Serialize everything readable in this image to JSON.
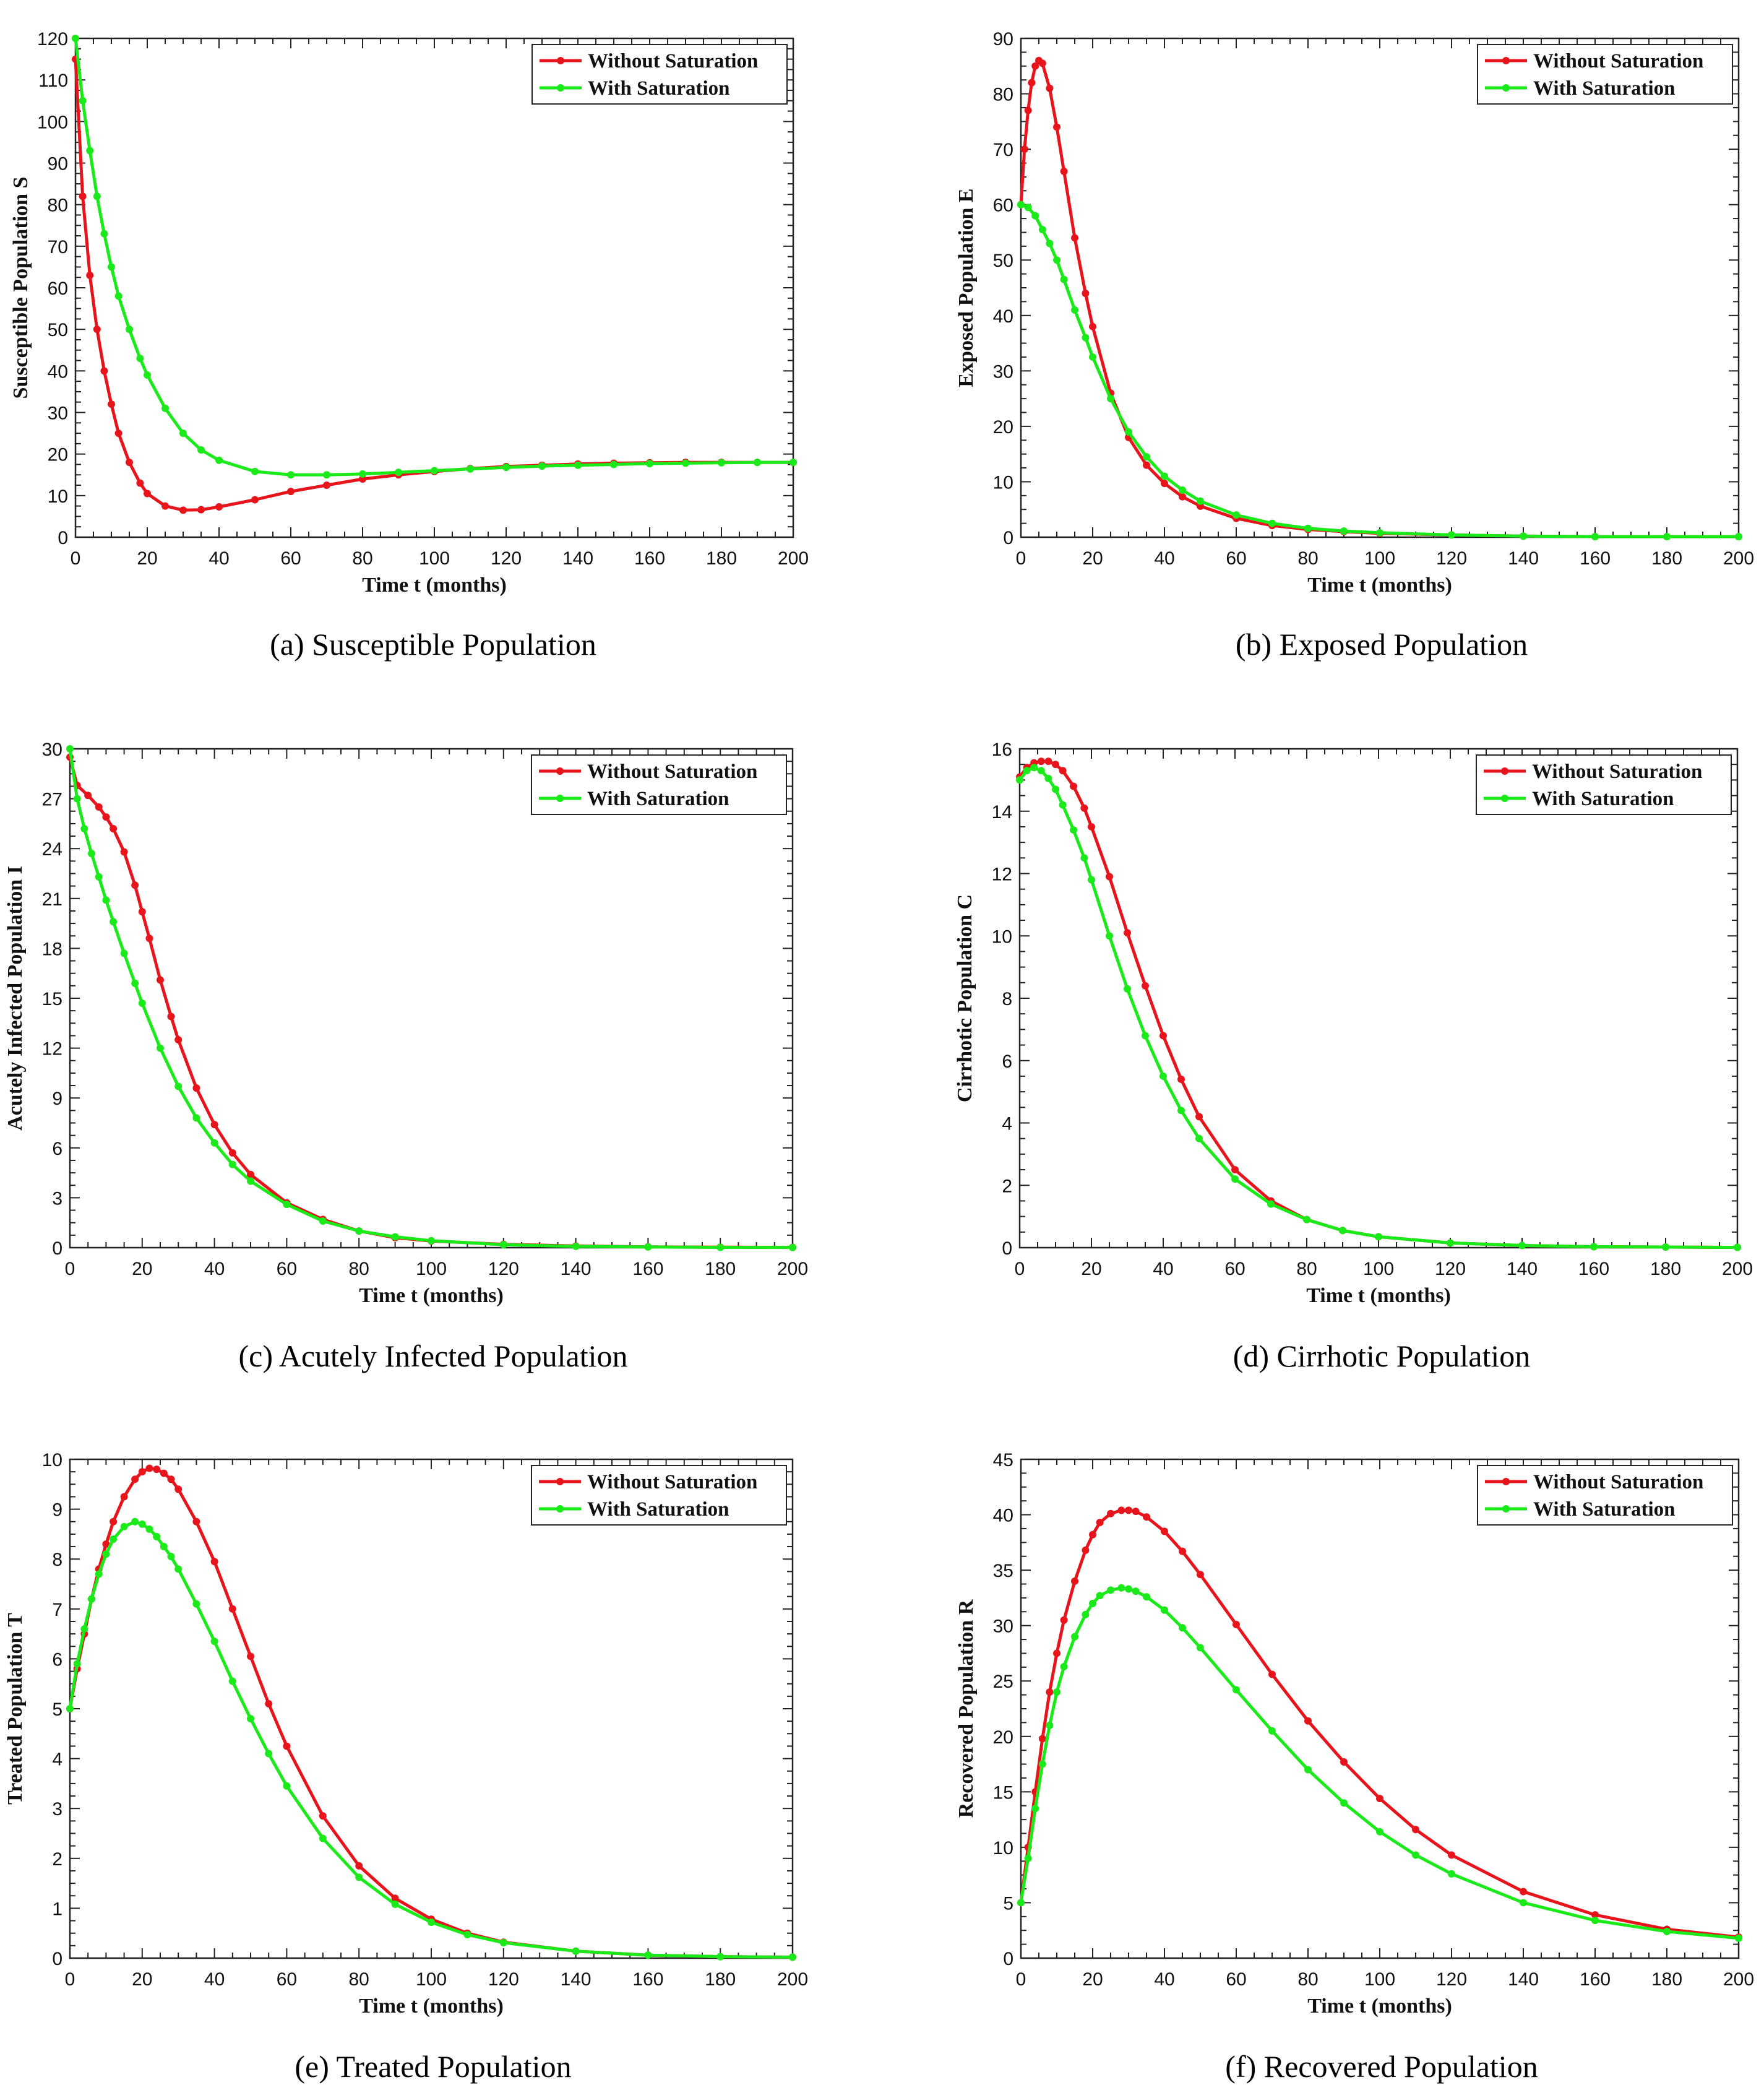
{
  "colors": {
    "without": "#e8141c",
    "with": "#1aea1a",
    "axis": "#222222"
  },
  "chart_data": [
    {
      "type": "line",
      "title": "",
      "caption": "(a) Susceptible Population",
      "xlabel": "Time t (months)",
      "ylabel": "Susceptible Population S",
      "xlim": [
        0,
        200
      ],
      "ylim": [
        0,
        120
      ],
      "xticks": [
        "0",
        "20",
        "40",
        "60",
        "80",
        "100",
        "120",
        "140",
        "160",
        "180",
        "200"
      ],
      "yticks": [
        "0",
        "10",
        "20",
        "30",
        "40",
        "50",
        "60",
        "70",
        "80",
        "90",
        "100",
        "110",
        "120"
      ],
      "legend": "top-right",
      "series": [
        {
          "name": "Without Saturation",
          "x": [
            0,
            2,
            4,
            6,
            8,
            10,
            12,
            15,
            18,
            20,
            25,
            30,
            35,
            40,
            50,
            60,
            70,
            80,
            90,
            100,
            110,
            120,
            130,
            140,
            150,
            160,
            170,
            180,
            190,
            200
          ],
          "y": [
            115,
            82,
            63,
            50,
            40,
            32,
            25,
            18,
            13,
            10.5,
            7.5,
            6.5,
            6.6,
            7.3,
            9,
            11,
            12.5,
            14,
            15,
            15.8,
            16.5,
            17,
            17.3,
            17.6,
            17.8,
            17.9,
            18,
            18,
            18,
            18
          ]
        },
        {
          "name": "With Saturation",
          "x": [
            0,
            2,
            4,
            6,
            8,
            10,
            12,
            15,
            18,
            20,
            25,
            30,
            35,
            40,
            50,
            60,
            70,
            80,
            90,
            100,
            110,
            120,
            130,
            140,
            150,
            160,
            170,
            180,
            190,
            200
          ],
          "y": [
            120,
            105,
            93,
            82,
            73,
            65,
            58,
            50,
            43,
            39,
            31,
            25,
            21,
            18.5,
            15.8,
            15,
            15,
            15.2,
            15.6,
            16,
            16.4,
            16.8,
            17.1,
            17.3,
            17.5,
            17.7,
            17.8,
            17.9,
            18,
            18
          ]
        }
      ]
    },
    {
      "type": "line",
      "title": "",
      "caption": "(b) Exposed Population",
      "xlabel": "Time t (months)",
      "ylabel": "Exposed Population E",
      "xlim": [
        0,
        200
      ],
      "ylim": [
        0,
        90
      ],
      "xticks": [
        "0",
        "20",
        "40",
        "60",
        "80",
        "100",
        "120",
        "140",
        "160",
        "180",
        "200"
      ],
      "yticks": [
        "0",
        "10",
        "20",
        "30",
        "40",
        "50",
        "60",
        "70",
        "80",
        "90"
      ],
      "legend": "top-right",
      "series": [
        {
          "name": "Without Saturation",
          "x": [
            0,
            1,
            2,
            3,
            4,
            5,
            6,
            8,
            10,
            12,
            15,
            18,
            20,
            25,
            30,
            35,
            40,
            45,
            50,
            60,
            70,
            80,
            90,
            100,
            120,
            140,
            160,
            180,
            200
          ],
          "y": [
            60,
            70,
            77,
            82,
            85,
            86,
            85.5,
            81,
            74,
            66,
            54,
            44,
            38,
            26,
            18,
            13,
            9.7,
            7.3,
            5.6,
            3.4,
            2.1,
            1.4,
            1,
            0.7,
            0.4,
            0.2,
            0.1,
            0.1,
            0.1
          ]
        },
        {
          "name": "With Saturation",
          "x": [
            0,
            2,
            4,
            6,
            8,
            10,
            12,
            15,
            18,
            20,
            25,
            30,
            35,
            40,
            45,
            50,
            60,
            70,
            80,
            90,
            100,
            120,
            140,
            160,
            180,
            200
          ],
          "y": [
            60,
            59.5,
            58,
            55.5,
            53,
            50,
            46.5,
            41,
            36,
            32.5,
            25,
            19,
            14.5,
            11,
            8.5,
            6.5,
            4,
            2.5,
            1.6,
            1.1,
            0.8,
            0.4,
            0.2,
            0.1,
            0.1,
            0.1
          ]
        }
      ]
    },
    {
      "type": "line",
      "title": "",
      "caption": "(c) Acutely Infected Population",
      "xlabel": "Time t (months)",
      "ylabel": "Acutely Infected Population I",
      "xlim": [
        0,
        200
      ],
      "ylim": [
        0,
        30
      ],
      "xticks": [
        "0",
        "20",
        "40",
        "60",
        "80",
        "100",
        "120",
        "140",
        "160",
        "180",
        "200"
      ],
      "yticks": [
        "0",
        "3",
        "6",
        "9",
        "12",
        "15",
        "18",
        "21",
        "24",
        "27",
        "30"
      ],
      "legend": "top-right",
      "series": [
        {
          "name": "Without Saturation",
          "x": [
            0,
            2,
            5,
            8,
            10,
            12,
            15,
            18,
            20,
            22,
            25,
            28,
            30,
            35,
            40,
            45,
            50,
            60,
            70,
            80,
            90,
            100,
            120,
            140,
            160,
            180,
            200
          ],
          "y": [
            29.5,
            27.8,
            27.2,
            26.5,
            25.9,
            25.2,
            23.8,
            21.8,
            20.2,
            18.6,
            16.1,
            13.9,
            12.5,
            9.6,
            7.4,
            5.7,
            4.4,
            2.7,
            1.7,
            1,
            0.6,
            0.4,
            0.2,
            0.1,
            0.05,
            0.03,
            0.02
          ]
        },
        {
          "name": "With Saturation",
          "x": [
            0,
            2,
            4,
            6,
            8,
            10,
            12,
            15,
            18,
            20,
            25,
            30,
            35,
            40,
            45,
            50,
            60,
            70,
            80,
            90,
            100,
            120,
            140,
            160,
            180,
            200
          ],
          "y": [
            30,
            27,
            25.2,
            23.7,
            22.3,
            20.9,
            19.6,
            17.7,
            15.9,
            14.7,
            12,
            9.7,
            7.8,
            6.3,
            5,
            4,
            2.6,
            1.6,
            1,
            0.65,
            0.42,
            0.18,
            0.08,
            0.04,
            0.02,
            0.01
          ]
        }
      ]
    },
    {
      "type": "line",
      "title": "",
      "caption": "(d) Cirrhotic Population",
      "xlabel": "Time t (months)",
      "ylabel": "Cirrhotic Population C",
      "xlim": [
        0,
        200
      ],
      "ylim": [
        0,
        16
      ],
      "xticks": [
        "0",
        "20",
        "40",
        "60",
        "80",
        "100",
        "120",
        "140",
        "160",
        "180",
        "200"
      ],
      "yticks": [
        "0",
        "2",
        "4",
        "6",
        "8",
        "10",
        "12",
        "14",
        "16"
      ],
      "legend": "top-right",
      "series": [
        {
          "name": "Without Saturation",
          "x": [
            0,
            2,
            4,
            6,
            8,
            10,
            12,
            15,
            18,
            20,
            25,
            30,
            35,
            40,
            45,
            50,
            60,
            70,
            80,
            90,
            100,
            120,
            140,
            160,
            180,
            200
          ],
          "y": [
            15.1,
            15.4,
            15.55,
            15.6,
            15.6,
            15.5,
            15.3,
            14.8,
            14.1,
            13.5,
            11.9,
            10.1,
            8.4,
            6.8,
            5.4,
            4.2,
            2.5,
            1.5,
            0.9,
            0.55,
            0.35,
            0.15,
            0.07,
            0.03,
            0.02,
            0.01
          ]
        },
        {
          "name": "With Saturation",
          "x": [
            0,
            2,
            4,
            6,
            8,
            10,
            12,
            15,
            18,
            20,
            25,
            30,
            35,
            40,
            45,
            50,
            60,
            70,
            80,
            90,
            100,
            120,
            140,
            160,
            180,
            200
          ],
          "y": [
            15,
            15.3,
            15.4,
            15.3,
            15.05,
            14.7,
            14.2,
            13.4,
            12.5,
            11.8,
            10,
            8.3,
            6.8,
            5.5,
            4.4,
            3.5,
            2.2,
            1.4,
            0.9,
            0.55,
            0.35,
            0.15,
            0.07,
            0.03,
            0.02,
            0.01
          ]
        }
      ]
    },
    {
      "type": "line",
      "title": "",
      "caption": "(e) Treated Population",
      "xlabel": "Time t (months)",
      "ylabel": "Treated Population T",
      "xlim": [
        0,
        200
      ],
      "ylim": [
        0,
        10
      ],
      "xticks": [
        "0",
        "20",
        "40",
        "60",
        "80",
        "100",
        "120",
        "140",
        "160",
        "180",
        "200"
      ],
      "yticks": [
        "0",
        "1",
        "2",
        "3",
        "4",
        "5",
        "6",
        "7",
        "8",
        "9",
        "10"
      ],
      "legend": "top-right",
      "series": [
        {
          "name": "Without Saturation",
          "x": [
            0,
            2,
            4,
            6,
            8,
            10,
            12,
            15,
            18,
            20,
            22,
            24,
            26,
            28,
            30,
            35,
            40,
            45,
            50,
            55,
            60,
            70,
            80,
            90,
            100,
            110,
            120,
            140,
            160,
            180,
            200
          ],
          "y": [
            5,
            5.8,
            6.5,
            7.2,
            7.8,
            8.3,
            8.75,
            9.25,
            9.6,
            9.75,
            9.82,
            9.8,
            9.72,
            9.6,
            9.4,
            8.75,
            7.95,
            7,
            6.05,
            5.1,
            4.25,
            2.85,
            1.85,
            1.2,
            0.78,
            0.5,
            0.32,
            0.14,
            0.06,
            0.03,
            0.02
          ]
        },
        {
          "name": "With Saturation",
          "x": [
            0,
            2,
            4,
            6,
            8,
            10,
            12,
            15,
            18,
            20,
            22,
            24,
            26,
            28,
            30,
            35,
            40,
            45,
            50,
            55,
            60,
            70,
            80,
            90,
            100,
            110,
            120,
            140,
            160,
            180,
            200
          ],
          "y": [
            5,
            5.9,
            6.6,
            7.2,
            7.7,
            8.1,
            8.4,
            8.65,
            8.75,
            8.7,
            8.6,
            8.45,
            8.25,
            8.05,
            7.8,
            7.1,
            6.35,
            5.55,
            4.8,
            4.1,
            3.45,
            2.4,
            1.62,
            1.08,
            0.72,
            0.47,
            0.31,
            0.14,
            0.06,
            0.03,
            0.02
          ]
        }
      ]
    },
    {
      "type": "line",
      "title": "",
      "caption": "(f) Recovered Population",
      "xlabel": "Time t (months)",
      "ylabel": "Recovered Population R",
      "xlim": [
        0,
        200
      ],
      "ylim": [
        0,
        45
      ],
      "xticks": [
        "0",
        "20",
        "40",
        "60",
        "80",
        "100",
        "120",
        "140",
        "160",
        "180",
        "200"
      ],
      "yticks": [
        "0",
        "5",
        "10",
        "15",
        "20",
        "25",
        "30",
        "35",
        "40",
        "45"
      ],
      "legend": "top-right",
      "series": [
        {
          "name": "Without Saturation",
          "x": [
            0,
            2,
            4,
            6,
            8,
            10,
            12,
            15,
            18,
            20,
            22,
            25,
            28,
            30,
            32,
            35,
            40,
            45,
            50,
            60,
            70,
            80,
            90,
            100,
            110,
            120,
            140,
            160,
            180,
            200
          ],
          "y": [
            5,
            10,
            15,
            19.8,
            24,
            27.5,
            30.5,
            34,
            36.8,
            38.2,
            39.3,
            40.1,
            40.4,
            40.4,
            40.3,
            39.8,
            38.5,
            36.7,
            34.6,
            30.1,
            25.6,
            21.4,
            17.7,
            14.4,
            11.6,
            9.3,
            6,
            3.9,
            2.6,
            1.9
          ]
        },
        {
          "name": "With Saturation",
          "x": [
            0,
            2,
            4,
            6,
            8,
            10,
            12,
            15,
            18,
            20,
            22,
            25,
            28,
            30,
            32,
            35,
            40,
            45,
            50,
            60,
            70,
            80,
            90,
            100,
            110,
            120,
            140,
            160,
            180,
            200
          ],
          "y": [
            5,
            9,
            13.5,
            17.5,
            21,
            24,
            26.3,
            29,
            31,
            32,
            32.7,
            33.2,
            33.4,
            33.3,
            33.1,
            32.6,
            31.4,
            29.8,
            28,
            24.2,
            20.5,
            17,
            14,
            11.4,
            9.3,
            7.6,
            5,
            3.4,
            2.4,
            1.8
          ]
        }
      ]
    }
  ]
}
